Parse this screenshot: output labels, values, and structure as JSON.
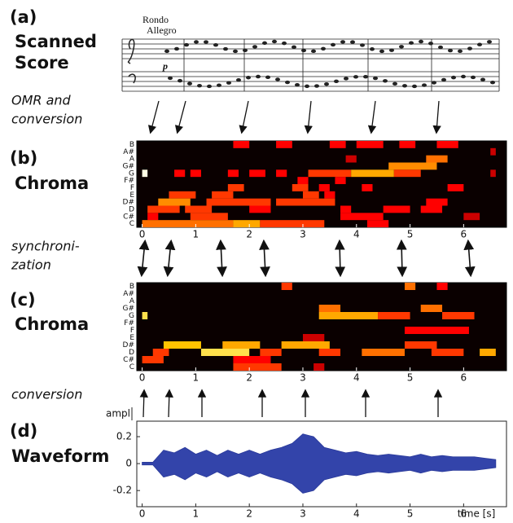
{
  "labels": {
    "a": "(a)",
    "a_title": [
      "Scanned",
      "Score"
    ],
    "omr": [
      "OMR and",
      "conversion"
    ],
    "b": "(b)",
    "b_title": "Chroma",
    "sync": [
      "synchroni-",
      "zation"
    ],
    "c": "(c)",
    "c_title": "Chroma",
    "conv": "conversion",
    "d": "(d)",
    "d_title": "Waveform"
  },
  "score": {
    "tempo": "Rondo",
    "style": "Allegro",
    "dynamic": "p"
  },
  "chroma_labels": [
    "C",
    "C#",
    "D",
    "D#",
    "E",
    "F",
    "F#",
    "G",
    "G#",
    "A",
    "A#",
    "B"
  ],
  "xlim": [
    -0.1,
    6.8
  ],
  "time_ticks": [
    0,
    1,
    2,
    3,
    4,
    5,
    6
  ],
  "chroma_b": [
    [
      11,
      1.7,
      2.0,
      0.5
    ],
    [
      11,
      2.5,
      2.8,
      0.5
    ],
    [
      11,
      3.5,
      3.8,
      0.5
    ],
    [
      11,
      4.0,
      4.5,
      0.5
    ],
    [
      11,
      4.8,
      5.1,
      0.5
    ],
    [
      11,
      5.5,
      5.9,
      0.5
    ],
    [
      10,
      6.5,
      6.6,
      0.4
    ],
    [
      9,
      3.8,
      4.0,
      0.4
    ],
    [
      9,
      5.3,
      5.7,
      0.7
    ],
    [
      8,
      4.6,
      5.5,
      0.75
    ],
    [
      7,
      0.0,
      0.1,
      1
    ],
    [
      7,
      0.6,
      0.8,
      0.5
    ],
    [
      7,
      0.9,
      1.1,
      0.5
    ],
    [
      7,
      1.6,
      1.8,
      0.5
    ],
    [
      7,
      2.0,
      2.3,
      0.5
    ],
    [
      7,
      2.5,
      2.7,
      0.5
    ],
    [
      7,
      3.1,
      3.9,
      0.6
    ],
    [
      7,
      3.9,
      4.7,
      0.8
    ],
    [
      7,
      4.7,
      5.2,
      0.6
    ],
    [
      7,
      6.5,
      6.6,
      0.4
    ],
    [
      6,
      2.9,
      3.1,
      0.5
    ],
    [
      6,
      3.6,
      3.8,
      0.5
    ],
    [
      5,
      1.6,
      1.9,
      0.6
    ],
    [
      5,
      2.8,
      3.1,
      0.6
    ],
    [
      5,
      3.3,
      3.5,
      0.5
    ],
    [
      5,
      4.1,
      4.3,
      0.5
    ],
    [
      5,
      5.7,
      6.0,
      0.5
    ],
    [
      4,
      0.5,
      1.0,
      0.6
    ],
    [
      4,
      1.3,
      1.7,
      0.6
    ],
    [
      4,
      3.0,
      3.3,
      0.6
    ],
    [
      4,
      3.4,
      3.6,
      0.5
    ],
    [
      3,
      0.3,
      0.9,
      0.75
    ],
    [
      3,
      1.2,
      2.4,
      0.6
    ],
    [
      3,
      2.5,
      3.6,
      0.6
    ],
    [
      3,
      5.3,
      5.7,
      0.5
    ],
    [
      2,
      0.1,
      0.7,
      0.6
    ],
    [
      2,
      0.8,
      1.3,
      0.6
    ],
    [
      2,
      2.0,
      2.4,
      0.5
    ],
    [
      2,
      3.7,
      3.9,
      0.5
    ],
    [
      2,
      4.5,
      5.0,
      0.5
    ],
    [
      2,
      5.2,
      5.6,
      0.5
    ],
    [
      1,
      0.1,
      0.3,
      0.5
    ],
    [
      1,
      0.9,
      1.6,
      0.6
    ],
    [
      1,
      3.7,
      4.5,
      0.5
    ],
    [
      1,
      6.0,
      6.3,
      0.4
    ],
    [
      0,
      0.0,
      1.7,
      0.7
    ],
    [
      0,
      1.7,
      2.2,
      0.8
    ],
    [
      0,
      2.2,
      3.4,
      0.6
    ],
    [
      0,
      4.2,
      4.6,
      0.5
    ]
  ],
  "chroma_c": [
    [
      11,
      2.6,
      2.8,
      0.6
    ],
    [
      11,
      4.9,
      5.1,
      0.7
    ],
    [
      11,
      5.5,
      5.7,
      0.5
    ],
    [
      8,
      3.3,
      3.7,
      0.7
    ],
    [
      8,
      5.2,
      5.6,
      0.7
    ],
    [
      7,
      0.0,
      0.1,
      0.9
    ],
    [
      7,
      3.3,
      4.4,
      0.8
    ],
    [
      7,
      4.4,
      5.0,
      0.6
    ],
    [
      7,
      5.6,
      6.2,
      0.6
    ],
    [
      5,
      4.9,
      6.1,
      0.5
    ],
    [
      4,
      3.0,
      3.4,
      0.4
    ],
    [
      3,
      0.4,
      1.1,
      0.85
    ],
    [
      3,
      1.5,
      2.2,
      0.8
    ],
    [
      3,
      2.6,
      3.5,
      0.8
    ],
    [
      3,
      4.9,
      5.5,
      0.6
    ],
    [
      2,
      0.2,
      0.5,
      0.6
    ],
    [
      2,
      1.1,
      2.0,
      0.9
    ],
    [
      2,
      2.2,
      2.6,
      0.6
    ],
    [
      2,
      3.3,
      3.7,
      0.6
    ],
    [
      2,
      4.1,
      4.9,
      0.7
    ],
    [
      2,
      5.4,
      6.0,
      0.6
    ],
    [
      2,
      6.3,
      6.6,
      0.8
    ],
    [
      1,
      0.0,
      0.4,
      0.6
    ],
    [
      1,
      1.7,
      2.4,
      0.5
    ],
    [
      0,
      1.7,
      2.6,
      0.6
    ],
    [
      0,
      3.2,
      3.4,
      0.4
    ]
  ],
  "waveform": {
    "axis_label": "ampl",
    "x_label": "time [s]",
    "ylim": [
      -0.32,
      0.315
    ],
    "yticks": [
      0.2,
      0,
      -0.2
    ],
    "x": [
      0,
      0.2,
      0.4,
      0.6,
      0.8,
      1.0,
      1.2,
      1.4,
      1.6,
      1.8,
      2.0,
      2.2,
      2.4,
      2.6,
      2.8,
      3.0,
      3.2,
      3.4,
      3.6,
      3.8,
      4.0,
      4.2,
      4.4,
      4.6,
      4.8,
      5.0,
      5.2,
      5.4,
      5.6,
      5.8,
      6.0,
      6.2,
      6.4,
      6.6
    ],
    "values": [
      0.01,
      0.01,
      0.1,
      0.08,
      0.12,
      0.07,
      0.1,
      0.06,
      0.1,
      0.07,
      0.1,
      0.07,
      0.1,
      0.12,
      0.15,
      0.22,
      0.2,
      0.12,
      0.1,
      0.08,
      0.09,
      0.07,
      0.06,
      0.07,
      0.06,
      0.05,
      0.07,
      0.05,
      0.06,
      0.05,
      0.05,
      0.05,
      0.04,
      0.03
    ]
  }
}
